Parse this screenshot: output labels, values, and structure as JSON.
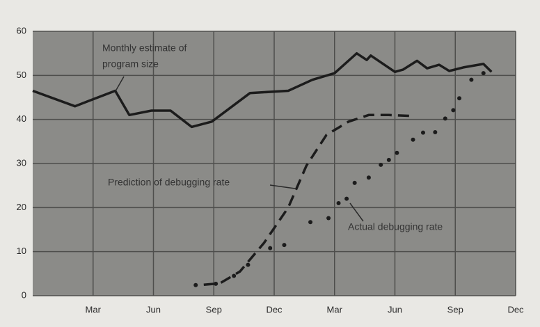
{
  "chart_data": {
    "type": "line",
    "annotations": [
      [
        "Monthly estimate of",
        "program size"
      ],
      [
        "Prediction of debugging rate"
      ],
      [
        "Actual debugging rate"
      ]
    ],
    "xlim": [
      0,
      24
    ],
    "xticks": [
      {
        "value": 3,
        "label": "Mar"
      },
      {
        "value": 6,
        "label": "Jun"
      },
      {
        "value": 9,
        "label": "Sep"
      },
      {
        "value": 12,
        "label": "Dec"
      },
      {
        "value": 15,
        "label": "Mar"
      },
      {
        "value": 18,
        "label": "Jun"
      },
      {
        "value": 21,
        "label": "Sep"
      },
      {
        "value": 24,
        "label": "Dec"
      }
    ],
    "ylim": [
      0,
      60
    ],
    "yticks": [
      0,
      10,
      20,
      30,
      40,
      50,
      60
    ],
    "grid": true,
    "series": [
      {
        "style": "solid",
        "color": "#1c1c1c",
        "x": [
          0,
          2.1,
          4.1,
          4.8,
          5.9,
          6.85,
          7.9,
          8.9,
          10.8,
          12.7,
          13.9,
          15.0,
          16.1,
          16.6,
          16.8,
          18.0,
          18.4,
          19.1,
          19.6,
          20.2,
          20.7,
          21.4,
          22.4,
          22.8
        ],
        "values": [
          46.5,
          43,
          46.5,
          41,
          42,
          42,
          38.3,
          39.5,
          46,
          46.5,
          49,
          50.5,
          55,
          53.5,
          54.5,
          50.8,
          51.3,
          53.3,
          51.6,
          52.4,
          51,
          51.8,
          52.6,
          50.8
        ]
      },
      {
        "style": "dashed",
        "color": "#1c1c1c",
        "x": [
          8.5,
          9.3,
          10.3,
          11.5,
          12.7,
          13.6,
          14.6,
          15.7,
          16.7,
          17.7,
          18.8
        ],
        "values": [
          2.5,
          2.8,
          5.5,
          12,
          20,
          29.5,
          36.5,
          39.5,
          41,
          41,
          40.8
        ]
      },
      {
        "style": "dots",
        "color": "#1c1c1c",
        "x": [
          8.1,
          9.1,
          10.0,
          10.7,
          11.8,
          12.5,
          13.8,
          14.7,
          15.2,
          15.6,
          16.0,
          16.7,
          17.3,
          17.7,
          18.1,
          18.9,
          19.4,
          20.0,
          20.5,
          20.9,
          21.2,
          21.8,
          22.4
        ],
        "values": [
          2.4,
          2.7,
          4.5,
          7,
          10.8,
          11.5,
          16.7,
          17.6,
          21,
          22,
          25.6,
          26.8,
          29.7,
          30.8,
          32.4,
          35.4,
          37,
          37.1,
          40.2,
          42.1,
          44.8,
          49,
          50.5
        ]
      }
    ]
  }
}
